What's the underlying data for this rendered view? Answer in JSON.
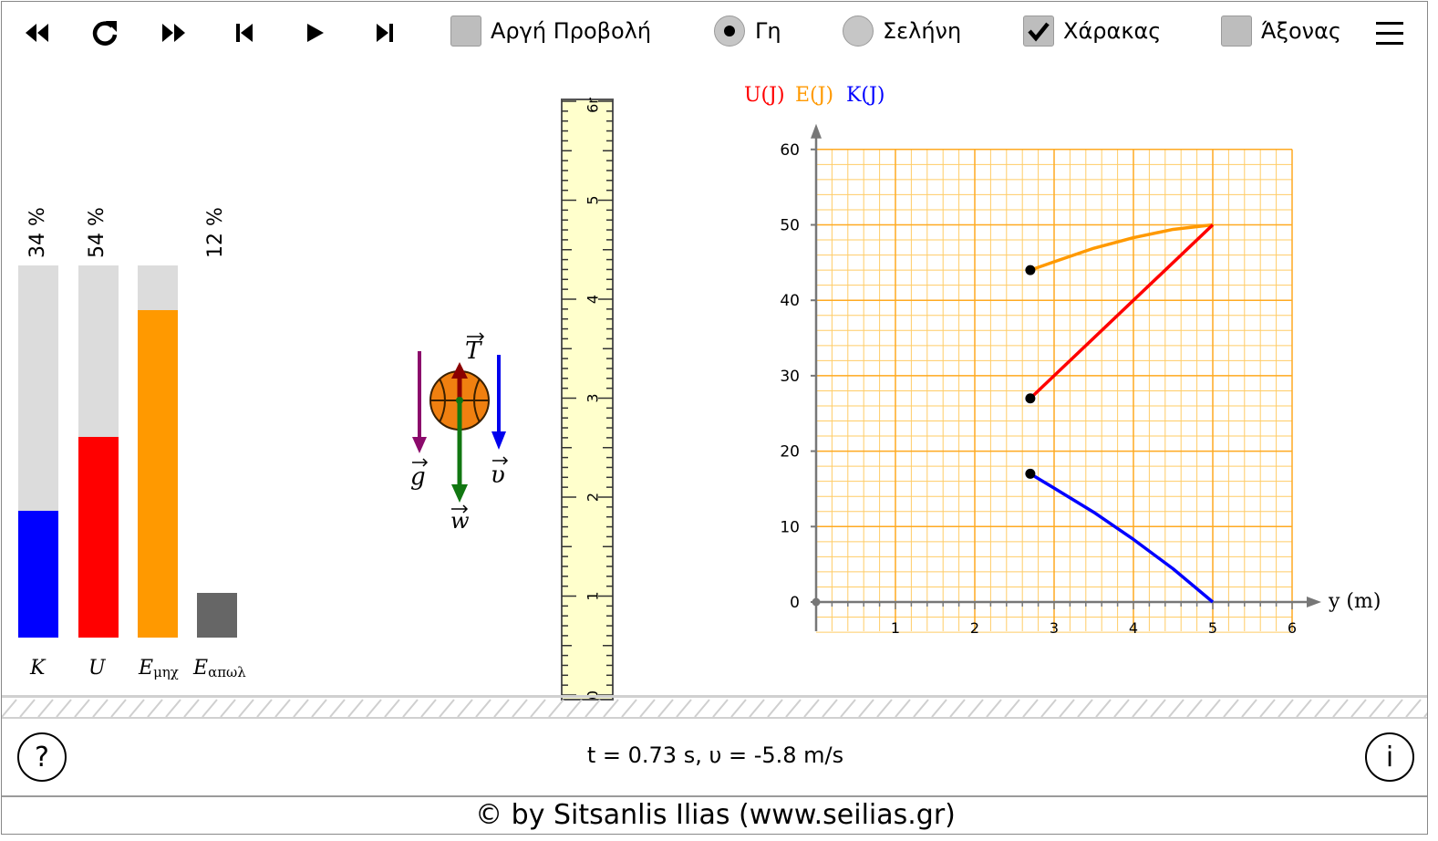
{
  "toolbar": {
    "slow_view_label": "Αργή Προβολή",
    "slow_view_checked": false,
    "earth_label": "Γη",
    "earth_selected": true,
    "moon_label": "Σελήνη",
    "moon_selected": false,
    "ruler_label": "Χάρακας",
    "ruler_checked": true,
    "axis_label": "Άξονας",
    "axis_checked": false
  },
  "energy_bars": {
    "items": [
      {
        "symbol": "K",
        "sub": "",
        "percent_label": "34 %",
        "value": 0.34,
        "total": 1.0,
        "color": "#0000ff"
      },
      {
        "symbol": "U",
        "sub": "",
        "percent_label": "54 %",
        "value": 0.54,
        "total": 1.0,
        "color": "#ff0000"
      },
      {
        "symbol": "E",
        "sub": "μηχ",
        "percent_label": "",
        "value": 0.88,
        "total": 1.0,
        "color": "#ff9900"
      },
      {
        "symbol": "E",
        "sub": "απωλ",
        "percent_label": "12 %",
        "value": 0.12,
        "total": null,
        "color": "#666666"
      }
    ]
  },
  "vectors": {
    "g": "g",
    "T": "T",
    "v": "υ",
    "w": "w"
  },
  "ruler": {
    "unit_label": "6m",
    "ticks": [
      "0",
      "1",
      "2",
      "3",
      "4",
      "5"
    ]
  },
  "chart_data": {
    "type": "line",
    "legend": [
      {
        "name": "U(J)",
        "color": "#ff0000"
      },
      {
        "name": "E(J)",
        "color": "#ff9900"
      },
      {
        "name": "K(J)",
        "color": "#0000ff"
      }
    ],
    "xlabel": "y (m)",
    "ylabel": "",
    "xlim": [
      0,
      6
    ],
    "ylim": [
      0,
      60
    ],
    "xticks": [
      1,
      2,
      3,
      4,
      5,
      6
    ],
    "yticks": [
      0,
      10,
      20,
      30,
      40,
      50,
      60
    ],
    "grid": true,
    "series": [
      {
        "name": "E(J)",
        "color": "#ff9900",
        "x": [
          5.0,
          4.5,
          4.0,
          3.5,
          3.0,
          2.7
        ],
        "y": [
          50,
          49.4,
          48.3,
          46.9,
          45.1,
          44
        ]
      },
      {
        "name": "U(J)",
        "color": "#ff0000",
        "x": [
          5.0,
          2.7
        ],
        "y": [
          50,
          27
        ]
      },
      {
        "name": "K(J)",
        "color": "#0000ff",
        "x": [
          5.0,
          4.5,
          4.0,
          3.5,
          3.0,
          2.7
        ],
        "y": [
          0,
          4.4,
          8.3,
          11.9,
          15.1,
          17
        ]
      }
    ],
    "markers": [
      {
        "x": 2.7,
        "y": 44
      },
      {
        "x": 2.7,
        "y": 27
      },
      {
        "x": 2.7,
        "y": 17
      }
    ]
  },
  "status": {
    "text": "t = 0.73 s, υ = -5.8 m/s"
  },
  "help_symbol": "?",
  "info_symbol": "i",
  "footer": {
    "text": "© by Sitsanlis Ilias (www.seilias.gr)"
  }
}
